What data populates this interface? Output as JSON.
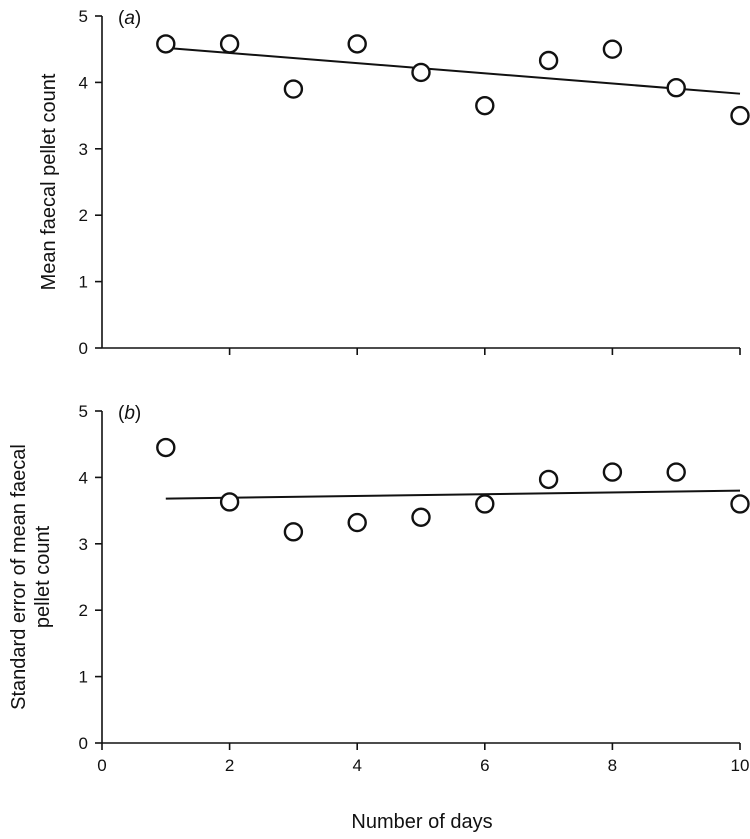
{
  "figure": {
    "shared_xlabel": "Number of days"
  },
  "chart_data": [
    {
      "type": "scatter",
      "panel_label": "(a)",
      "panel_letter": "a",
      "ylabel_lines": [
        "Mean faecal pellet count"
      ],
      "xlim": [
        0,
        10
      ],
      "ylim": [
        0,
        5
      ],
      "x_ticks": [
        2,
        4,
        6,
        8,
        10
      ],
      "x_tick_labels_shown": false,
      "y_ticks": [
        0,
        1,
        2,
        3,
        4,
        5
      ],
      "grid": false,
      "series": [
        {
          "x": [
            1,
            2,
            3,
            4,
            5,
            6,
            7,
            8,
            9,
            10
          ],
          "y": [
            4.58,
            4.58,
            3.9,
            4.58,
            4.15,
            3.65,
            4.33,
            4.5,
            3.92,
            3.5
          ]
        }
      ],
      "trend_line": {
        "x": [
          1,
          10
        ],
        "y": [
          4.52,
          3.83
        ]
      }
    },
    {
      "type": "scatter",
      "panel_label": "(b)",
      "panel_letter": "b",
      "ylabel_lines": [
        "Standard error of mean faecal",
        "pellet count"
      ],
      "xlabel": "Number of days",
      "xlim": [
        0,
        10
      ],
      "ylim": [
        0,
        5
      ],
      "x_ticks": [
        0,
        2,
        4,
        6,
        8,
        10
      ],
      "x_tick_labels_shown": true,
      "y_ticks": [
        0,
        1,
        2,
        3,
        4,
        5
      ],
      "grid": false,
      "series": [
        {
          "x": [
            1,
            2,
            3,
            4,
            5,
            6,
            7,
            8,
            9,
            10
          ],
          "y": [
            4.45,
            3.63,
            3.18,
            3.32,
            3.4,
            3.6,
            3.97,
            4.08,
            4.08,
            3.6
          ]
        }
      ],
      "trend_line": {
        "x": [
          1,
          10
        ],
        "y": [
          3.68,
          3.8
        ]
      }
    }
  ]
}
